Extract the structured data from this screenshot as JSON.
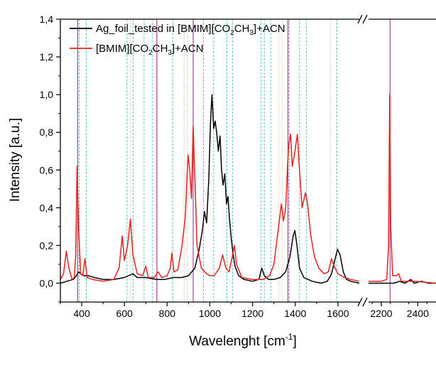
{
  "chart_data": {
    "type": "line",
    "title": "",
    "xlabel": "Wavelenght [cm",
    "xlabel_sup": "-1",
    "xlabel_end": "]",
    "ylabel": "Intensity [a.u.]",
    "ylim": [
      -0.1,
      1.4
    ],
    "xlim_left": [
      300,
      1700
    ],
    "xlim_right": [
      2130,
      2500
    ],
    "x_break": true,
    "yticks": [
      {
        "value": 0.0,
        "label": "0,0"
      },
      {
        "value": 0.2,
        "label": "0,2"
      },
      {
        "value": 0.4,
        "label": "0,4"
      },
      {
        "value": 0.6,
        "label": "0,6"
      },
      {
        "value": 0.8,
        "label": "0,8"
      },
      {
        "value": 1.0,
        "label": "1,0"
      },
      {
        "value": 1.2,
        "label": "1,2"
      },
      {
        "value": 1.4,
        "label": "1,4"
      }
    ],
    "xticks": [
      {
        "value": 400,
        "label": "400"
      },
      {
        "value": 600,
        "label": "600"
      },
      {
        "value": 800,
        "label": "800"
      },
      {
        "value": 1000,
        "label": "1000"
      },
      {
        "value": 1200,
        "label": "1200"
      },
      {
        "value": 1400,
        "label": "1400"
      },
      {
        "value": 1600,
        "label": "1600"
      },
      {
        "value": 2200,
        "label": "2200"
      },
      {
        "value": 2400,
        "label": "2400"
      }
    ],
    "legend": {
      "placement": "top-left",
      "entries": [
        {
          "series": 0,
          "parts": [
            {
              "t": "Ag_foil_tested in [BMIM][CO",
              "s": false
            },
            {
              "t": "2",
              "s": true
            },
            {
              "t": "CH",
              "s": false
            },
            {
              "t": "3",
              "s": true
            },
            {
              "t": "]+ACN",
              "s": false
            }
          ]
        },
        {
          "series": 1,
          "parts": [
            {
              "t": "[BMIM][CO",
              "s": false
            },
            {
              "t": "2",
              "s": true
            },
            {
              "t": "CH",
              "s": false
            },
            {
              "t": "3",
              "s": true
            },
            {
              "t": "]+ACN",
              "s": false
            }
          ]
        }
      ]
    },
    "series": [
      {
        "name": "Ag_foil_tested in [BMIM][CO2CH3]+ACN",
        "color": "#000000",
        "points": [
          [
            300,
            0.0
          ],
          [
            330,
            0.01
          ],
          [
            360,
            0.02
          ],
          [
            375,
            0.04
          ],
          [
            385,
            0.06
          ],
          [
            395,
            0.05
          ],
          [
            410,
            0.04
          ],
          [
            430,
            0.04
          ],
          [
            460,
            0.03
          ],
          [
            500,
            0.02
          ],
          [
            550,
            0.02
          ],
          [
            600,
            0.03
          ],
          [
            640,
            0.05
          ],
          [
            660,
            0.03
          ],
          [
            700,
            0.03
          ],
          [
            750,
            0.02
          ],
          [
            790,
            0.02
          ],
          [
            830,
            0.03
          ],
          [
            870,
            0.03
          ],
          [
            900,
            0.04
          ],
          [
            930,
            0.08
          ],
          [
            950,
            0.18
          ],
          [
            965,
            0.28
          ],
          [
            975,
            0.38
          ],
          [
            985,
            0.32
          ],
          [
            995,
            0.55
          ],
          [
            1003,
            0.85
          ],
          [
            1010,
            1.0
          ],
          [
            1018,
            0.82
          ],
          [
            1025,
            0.86
          ],
          [
            1032,
            0.8
          ],
          [
            1040,
            0.7
          ],
          [
            1048,
            0.78
          ],
          [
            1055,
            0.6
          ],
          [
            1062,
            0.52
          ],
          [
            1070,
            0.58
          ],
          [
            1078,
            0.42
          ],
          [
            1085,
            0.46
          ],
          [
            1092,
            0.34
          ],
          [
            1100,
            0.24
          ],
          [
            1108,
            0.16
          ],
          [
            1118,
            0.09
          ],
          [
            1135,
            0.04
          ],
          [
            1160,
            0.02
          ],
          [
            1200,
            0.01
          ],
          [
            1230,
            0.02
          ],
          [
            1243,
            0.08
          ],
          [
            1255,
            0.04
          ],
          [
            1275,
            0.02
          ],
          [
            1300,
            0.02
          ],
          [
            1330,
            0.03
          ],
          [
            1355,
            0.06
          ],
          [
            1375,
            0.14
          ],
          [
            1390,
            0.25
          ],
          [
            1398,
            0.28
          ],
          [
            1408,
            0.2
          ],
          [
            1420,
            0.08
          ],
          [
            1440,
            0.03
          ],
          [
            1480,
            0.01
          ],
          [
            1520,
            0.0
          ],
          [
            1550,
            0.01
          ],
          [
            1570,
            0.05
          ],
          [
            1585,
            0.12
          ],
          [
            1598,
            0.18
          ],
          [
            1610,
            0.15
          ],
          [
            1625,
            0.06
          ],
          [
            1640,
            0.02
          ],
          [
            1660,
            0.01
          ],
          [
            1700,
            0.0
          ],
          null,
          [
            2130,
            0.0
          ],
          [
            2180,
            0.0
          ],
          [
            2230,
            0.0
          ],
          [
            2270,
            0.0
          ],
          [
            2300,
            0.01
          ],
          [
            2330,
            0.0
          ],
          [
            2362,
            0.02
          ],
          [
            2380,
            0.0
          ],
          [
            2420,
            0.01
          ],
          [
            2460,
            0.0
          ],
          [
            2500,
            0.0
          ]
        ]
      },
      {
        "name": "[BMIM][CO2CH3]+ACN",
        "color": "#e3231f",
        "points": [
          [
            300,
            0.02
          ],
          [
            315,
            0.05
          ],
          [
            328,
            0.17
          ],
          [
            340,
            0.08
          ],
          [
            355,
            0.02
          ],
          [
            365,
            0.03
          ],
          [
            372,
            0.15
          ],
          [
            378,
            0.62
          ],
          [
            385,
            0.3
          ],
          [
            395,
            0.05
          ],
          [
            405,
            0.04
          ],
          [
            415,
            0.13
          ],
          [
            425,
            0.03
          ],
          [
            450,
            0.02
          ],
          [
            500,
            0.01
          ],
          [
            550,
            0.02
          ],
          [
            575,
            0.08
          ],
          [
            590,
            0.25
          ],
          [
            600,
            0.12
          ],
          [
            615,
            0.2
          ],
          [
            628,
            0.34
          ],
          [
            640,
            0.15
          ],
          [
            660,
            0.05
          ],
          [
            685,
            0.04
          ],
          [
            700,
            0.09
          ],
          [
            712,
            0.03
          ],
          [
            740,
            0.03
          ],
          [
            758,
            0.06
          ],
          [
            775,
            0.03
          ],
          [
            800,
            0.04
          ],
          [
            815,
            0.08
          ],
          [
            822,
            0.16
          ],
          [
            832,
            0.06
          ],
          [
            850,
            0.07
          ],
          [
            870,
            0.2
          ],
          [
            885,
            0.35
          ],
          [
            898,
            0.68
          ],
          [
            906,
            0.6
          ],
          [
            914,
            0.45
          ],
          [
            922,
            0.83
          ],
          [
            930,
            0.55
          ],
          [
            940,
            0.2
          ],
          [
            960,
            0.08
          ],
          [
            985,
            0.05
          ],
          [
            1000,
            0.04
          ],
          [
            1020,
            0.04
          ],
          [
            1045,
            0.08
          ],
          [
            1060,
            0.15
          ],
          [
            1075,
            0.08
          ],
          [
            1090,
            0.06
          ],
          [
            1105,
            0.14
          ],
          [
            1115,
            0.2
          ],
          [
            1125,
            0.1
          ],
          [
            1150,
            0.03
          ],
          [
            1200,
            0.02
          ],
          [
            1250,
            0.02
          ],
          [
            1280,
            0.04
          ],
          [
            1300,
            0.1
          ],
          [
            1320,
            0.28
          ],
          [
            1335,
            0.42
          ],
          [
            1345,
            0.33
          ],
          [
            1355,
            0.4
          ],
          [
            1368,
            0.72
          ],
          [
            1378,
            0.79
          ],
          [
            1386,
            0.62
          ],
          [
            1396,
            0.68
          ],
          [
            1410,
            0.79
          ],
          [
            1420,
            0.6
          ],
          [
            1432,
            0.4
          ],
          [
            1448,
            0.48
          ],
          [
            1458,
            0.42
          ],
          [
            1472,
            0.26
          ],
          [
            1490,
            0.14
          ],
          [
            1510,
            0.08
          ],
          [
            1535,
            0.05
          ],
          [
            1555,
            0.06
          ],
          [
            1570,
            0.13
          ],
          [
            1582,
            0.09
          ],
          [
            1600,
            0.05
          ],
          [
            1630,
            0.03
          ],
          [
            1660,
            0.02
          ],
          [
            1700,
            0.01
          ],
          null,
          [
            2130,
            0.01
          ],
          [
            2200,
            0.01
          ],
          [
            2230,
            0.02
          ],
          [
            2240,
            0.2
          ],
          [
            2246,
            1.0
          ],
          [
            2252,
            0.3
          ],
          [
            2262,
            0.04
          ],
          [
            2285,
            0.04
          ],
          [
            2295,
            0.05
          ],
          [
            2310,
            0.01
          ],
          [
            2380,
            0.01
          ],
          [
            2500,
            0.0
          ]
        ]
      }
    ],
    "markers": {
      "magenta_solid": {
        "color": "#a0358e",
        "x": [
          381,
          752,
          922,
          1366,
          2248
        ]
      },
      "teal_dashed": {
        "color": "#45bfb6",
        "x": [
          388,
          421,
          612,
          640,
          692,
          732,
          826,
          970,
          1018,
          1080,
          1107,
          1240,
          1255,
          1285,
          1372,
          1420,
          1453,
          1595
        ]
      },
      "orange_dotted": {
        "color": "#f3a66d",
        "x": [
          628,
          880,
          895,
          1322,
          1340,
          1565
        ]
      }
    }
  }
}
